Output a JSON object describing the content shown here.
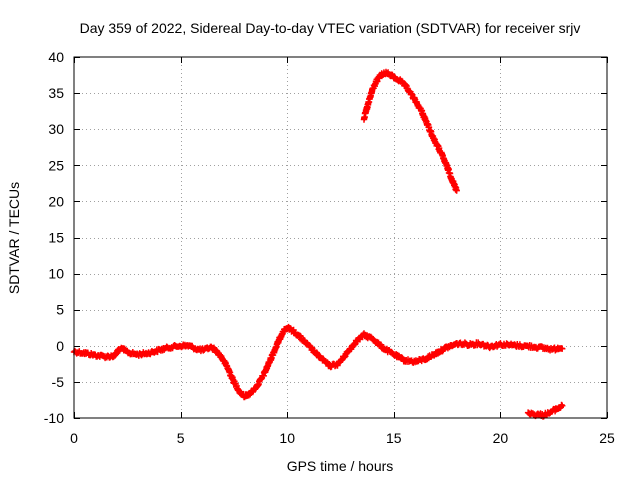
{
  "chart_data": {
    "type": "scatter",
    "title": "Day 359 of 2022, Sidereal Day-to-day VTEC variation (SDTVAR) for receiver srjv",
    "xlabel": "GPS time / hours",
    "ylabel": "SDTVAR / TECUs",
    "xlim": [
      0,
      25
    ],
    "ylim": [
      -10,
      40
    ],
    "xticks": [
      0,
      5,
      10,
      15,
      20,
      25
    ],
    "yticks": [
      -10,
      -5,
      0,
      5,
      10,
      15,
      20,
      25,
      30,
      35,
      40
    ],
    "grid": true,
    "marker": "plus",
    "color": "#ff0000",
    "series": [
      {
        "name": "sdtvar-main",
        "points": [
          [
            0.0,
            -0.8
          ],
          [
            0.5,
            -1.0
          ],
          [
            1.0,
            -1.3
          ],
          [
            1.5,
            -1.5
          ],
          [
            1.9,
            -1.4
          ],
          [
            2.1,
            -0.5
          ],
          [
            2.3,
            -0.5
          ],
          [
            2.6,
            -1.0
          ],
          [
            3.0,
            -1.2
          ],
          [
            3.5,
            -1.0
          ],
          [
            4.0,
            -0.6
          ],
          [
            4.5,
            -0.2
          ],
          [
            5.0,
            0.0
          ],
          [
            5.4,
            0.0
          ],
          [
            5.8,
            -0.5
          ],
          [
            6.1,
            -0.6
          ],
          [
            6.4,
            -0.2
          ],
          [
            6.6,
            -0.5
          ],
          [
            6.9,
            -1.5
          ],
          [
            7.2,
            -3.0
          ],
          [
            7.5,
            -5.0
          ],
          [
            7.8,
            -6.5
          ],
          [
            8.0,
            -7.0
          ],
          [
            8.3,
            -6.5
          ],
          [
            8.6,
            -5.5
          ],
          [
            8.9,
            -4.0
          ],
          [
            9.2,
            -2.0
          ],
          [
            9.5,
            0.0
          ],
          [
            9.8,
            2.0
          ],
          [
            10.0,
            2.5
          ],
          [
            10.3,
            2.0
          ],
          [
            10.6,
            1.2
          ],
          [
            11.0,
            0.0
          ],
          [
            11.5,
            -1.5
          ],
          [
            12.0,
            -2.8
          ],
          [
            12.4,
            -2.5
          ],
          [
            12.8,
            -1.0
          ],
          [
            13.2,
            0.5
          ],
          [
            13.6,
            1.5
          ],
          [
            14.0,
            1.0
          ],
          [
            14.5,
            -0.3
          ],
          [
            15.0,
            -1.2
          ],
          [
            15.5,
            -2.0
          ],
          [
            16.0,
            -2.2
          ],
          [
            16.5,
            -1.8
          ],
          [
            17.0,
            -1.0
          ],
          [
            17.5,
            -0.2
          ],
          [
            18.0,
            0.3
          ],
          [
            18.5,
            0.2
          ],
          [
            19.0,
            0.3
          ],
          [
            19.5,
            -0.1
          ],
          [
            20.0,
            0.2
          ],
          [
            20.5,
            0.1
          ],
          [
            21.0,
            0.0
          ],
          [
            21.5,
            -0.1
          ],
          [
            22.0,
            -0.3
          ],
          [
            22.5,
            -0.5
          ],
          [
            22.8,
            -0.2
          ],
          [
            22.9,
            -0.4
          ]
        ]
      },
      {
        "name": "sdtvar-arc",
        "points": [
          [
            13.6,
            31.5
          ],
          [
            13.8,
            33.5
          ],
          [
            14.0,
            35.5
          ],
          [
            14.2,
            36.7
          ],
          [
            14.4,
            37.5
          ],
          [
            14.6,
            37.8
          ],
          [
            14.8,
            37.6
          ],
          [
            15.0,
            37.2
          ],
          [
            15.3,
            36.7
          ],
          [
            15.6,
            35.8
          ],
          [
            16.0,
            34.0
          ],
          [
            16.3,
            32.5
          ],
          [
            16.6,
            30.5
          ],
          [
            16.9,
            28.5
          ],
          [
            17.2,
            26.8
          ],
          [
            17.5,
            24.8
          ],
          [
            17.8,
            22.5
          ],
          [
            17.95,
            21.5
          ]
        ]
      },
      {
        "name": "sdtvar-tail",
        "points": [
          [
            21.3,
            -9.2
          ],
          [
            21.6,
            -9.5
          ],
          [
            22.0,
            -9.6
          ],
          [
            22.3,
            -9.3
          ],
          [
            22.6,
            -8.8
          ],
          [
            22.8,
            -8.5
          ],
          [
            22.9,
            -8.3
          ]
        ]
      }
    ]
  }
}
